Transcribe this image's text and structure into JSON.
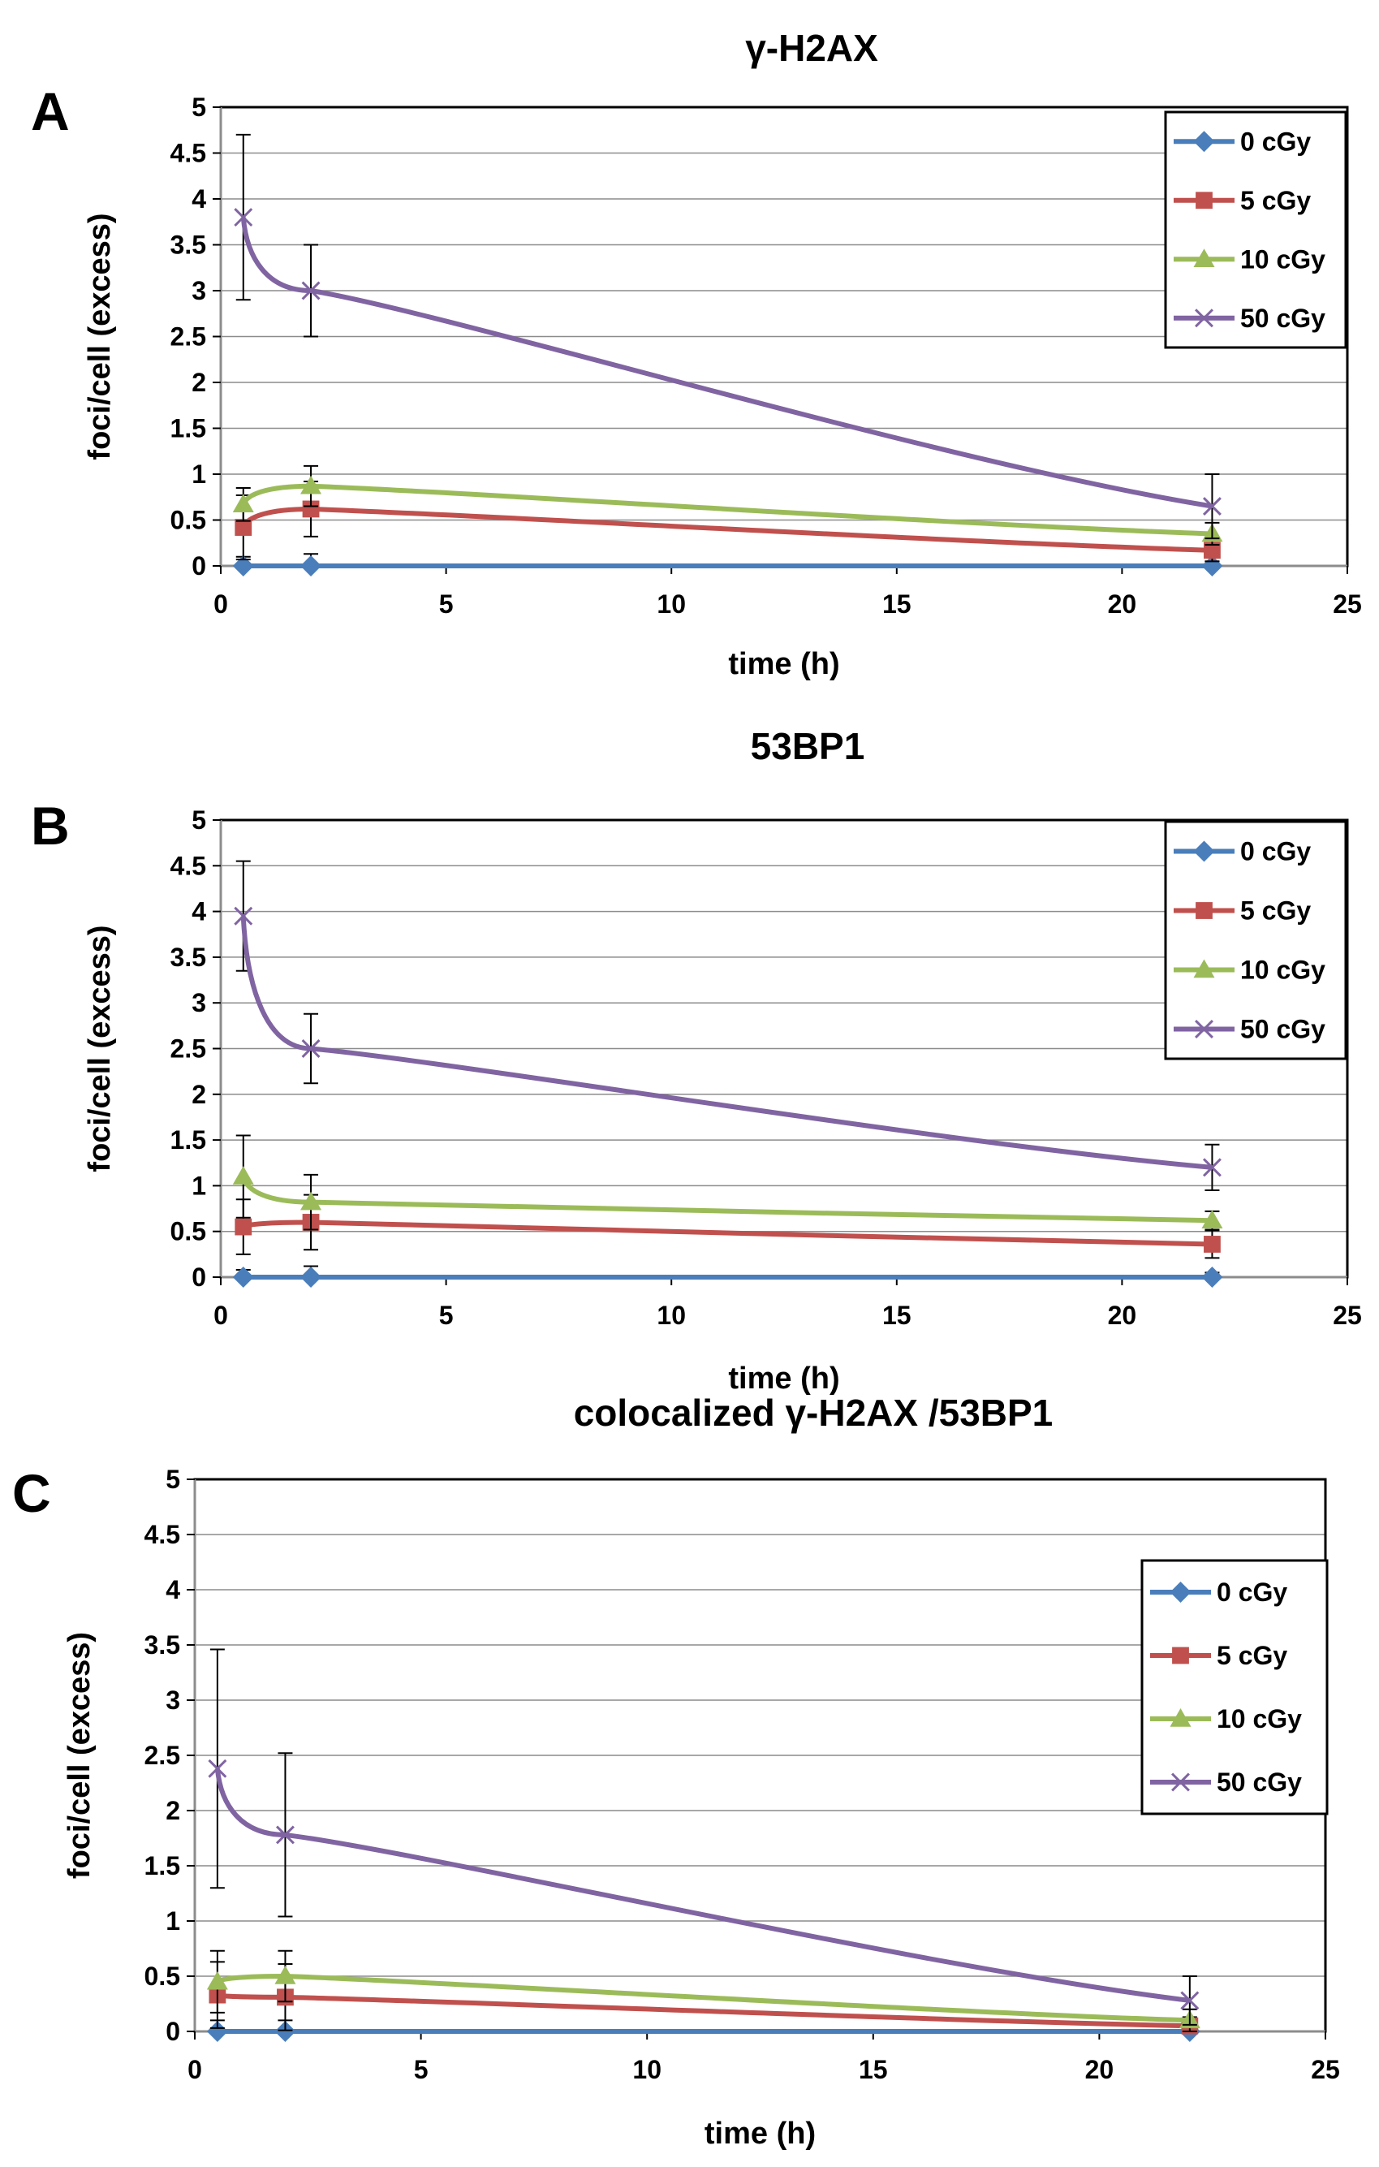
{
  "figure": {
    "x_tick_labels": [
      "0",
      "5",
      "10",
      "15",
      "20",
      "25"
    ],
    "y_tick_labels": [
      "0",
      "0.5",
      "1",
      "1.5",
      "2",
      "2.5",
      "3",
      "3.5",
      "4",
      "4.5",
      "5"
    ]
  },
  "series_styles": [
    {
      "name": "0 cGy",
      "color": "#4a7ebb",
      "marker": "diamond"
    },
    {
      "name": "5 cGy",
      "color": "#c0504d",
      "marker": "square"
    },
    {
      "name": "10 cGy",
      "color": "#9bbb59",
      "marker": "triangle"
    },
    {
      "name": "50 cGy",
      "color": "#8064a2",
      "marker": "x"
    }
  ],
  "chart_data": [
    {
      "type": "line",
      "panel_label": "A",
      "title": "γ-H2AX",
      "xlabel": "time (h)",
      "ylabel": "foci/cell (excess)",
      "xlim": [
        0,
        25
      ],
      "ylim": [
        0,
        5
      ],
      "legend_position": "top-right",
      "x": [
        0.5,
        2,
        22
      ],
      "series": [
        {
          "name": "0 cGy",
          "values": [
            0,
            0,
            0
          ],
          "err": [
            0.1,
            0.13,
            0.05
          ]
        },
        {
          "name": "5 cGy",
          "values": [
            0.42,
            0.62,
            0.17
          ],
          "err": [
            0.35,
            0.3,
            0.12
          ]
        },
        {
          "name": "10 cGy",
          "values": [
            0.67,
            0.87,
            0.35
          ],
          "err": [
            0.18,
            0.22,
            0.12
          ]
        },
        {
          "name": "50 cGy",
          "values": [
            3.8,
            3.0,
            0.65
          ],
          "err": [
            0.9,
            0.5,
            0.35
          ]
        }
      ]
    },
    {
      "type": "line",
      "panel_label": "B",
      "title": "53BP1",
      "xlabel": "time (h)",
      "ylabel": "foci/cell (excess)",
      "xlim": [
        0,
        25
      ],
      "ylim": [
        0,
        5
      ],
      "legend_position": "top-right",
      "x": [
        0.5,
        2,
        22
      ],
      "series": [
        {
          "name": "0 cGy",
          "values": [
            0,
            0,
            0
          ],
          "err": [
            0.08,
            0.12,
            0.05
          ]
        },
        {
          "name": "5 cGy",
          "values": [
            0.55,
            0.6,
            0.36
          ],
          "err": [
            0.3,
            0.3,
            0.15
          ]
        },
        {
          "name": "10 cGy",
          "values": [
            1.1,
            0.82,
            0.62
          ],
          "err": [
            0.45,
            0.3,
            0.1
          ]
        },
        {
          "name": "50 cGy",
          "values": [
            3.95,
            2.5,
            1.2
          ],
          "err": [
            0.6,
            0.38,
            0.25
          ]
        }
      ]
    },
    {
      "type": "line",
      "panel_label": "C",
      "title": "colocalized γ-H2AX /53BP1",
      "xlabel": "time (h)",
      "ylabel": "foci/cell (excess)",
      "xlim": [
        0,
        25
      ],
      "ylim": [
        0,
        5
      ],
      "legend_position": "top-right",
      "x": [
        0.5,
        2,
        22
      ],
      "series": [
        {
          "name": "0 cGy",
          "values": [
            0,
            0,
            0
          ],
          "err": [
            0.1,
            0.1,
            0.05
          ]
        },
        {
          "name": "5 cGy",
          "values": [
            0.33,
            0.31,
            0.05
          ],
          "err": [
            0.3,
            0.3,
            0.08
          ]
        },
        {
          "name": "10 cGy",
          "values": [
            0.45,
            0.5,
            0.1
          ],
          "err": [
            0.28,
            0.23,
            0.1
          ]
        },
        {
          "name": "50 cGy",
          "values": [
            2.38,
            1.78,
            0.28
          ],
          "err": [
            1.08,
            0.74,
            0.22
          ]
        }
      ]
    }
  ]
}
